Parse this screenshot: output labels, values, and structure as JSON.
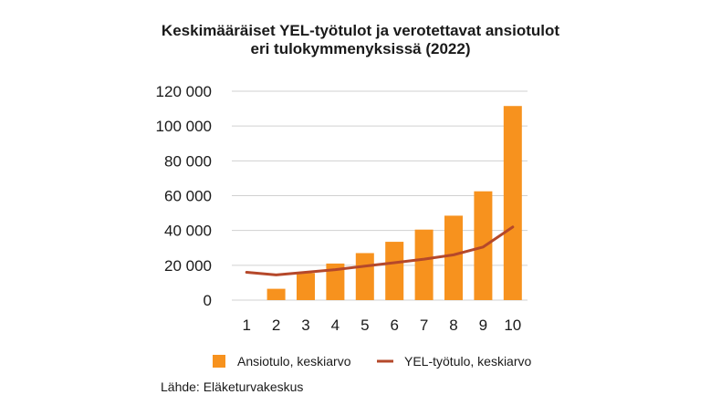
{
  "chart_data": {
    "type": "bar",
    "title_lines": [
      "Keskimääräiset YEL-työtulot ja verotettavat ansiotulot",
      "eri tulokymmenyksissä (2022)"
    ],
    "categories": [
      "1",
      "2",
      "3",
      "4",
      "5",
      "6",
      "7",
      "8",
      "9",
      "10"
    ],
    "series": [
      {
        "name": "Ansiotulo, keskiarvo",
        "type": "bar",
        "color": "#f7921e",
        "values": [
          0,
          6500,
          15500,
          21000,
          27000,
          33500,
          40500,
          48500,
          62500,
          111500
        ]
      },
      {
        "name": "YEL-työtulo, keskiarvo",
        "type": "line",
        "color": "#b5482a",
        "values": [
          16000,
          14500,
          16000,
          17500,
          19500,
          21500,
          23500,
          26000,
          30500,
          42000
        ]
      }
    ],
    "y_ticks": [
      "0",
      "20 000",
      "40 000",
      "60 000",
      "80 000",
      "100 000",
      "120 000"
    ],
    "ylim": [
      0,
      120000
    ],
    "grid": true,
    "legend_position": "bottom"
  },
  "source": "Lähde: Eläketurvakeskus"
}
